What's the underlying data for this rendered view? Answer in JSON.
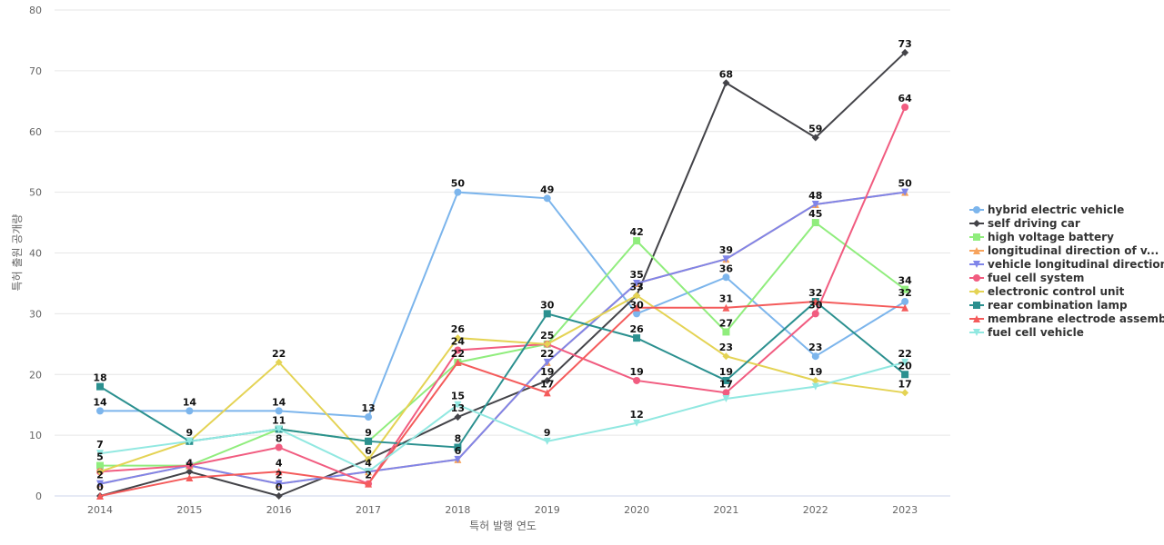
{
  "chart_data": {
    "type": "line",
    "title": "",
    "xlabel": "특허 발행 연도",
    "ylabel": "특허 출원 공개량",
    "x": [
      "2014",
      "2015",
      "2016",
      "2017",
      "2018",
      "2019",
      "2020",
      "2021",
      "2022",
      "2023"
    ],
    "ylim": [
      0,
      80
    ],
    "yticks": [
      0,
      10,
      20,
      30,
      40,
      50,
      60,
      70,
      80
    ],
    "grid": true,
    "legend_position": "right",
    "series": [
      {
        "name": "hybrid electric vehicle",
        "color": "#7cb5ec",
        "marker": "circle",
        "values": [
          14,
          14,
          14,
          13,
          50,
          49,
          30,
          36,
          23,
          32
        ]
      },
      {
        "name": "self driving car",
        "color": "#434348",
        "marker": "diamond",
        "values": [
          0,
          4,
          0,
          6,
          13,
          19,
          33,
          68,
          59,
          73
        ]
      },
      {
        "name": "high voltage battery",
        "color": "#90ed7d",
        "marker": "square",
        "values": [
          5,
          5,
          11,
          9,
          22,
          25,
          42,
          27,
          45,
          34
        ]
      },
      {
        "name": "longitudinal direction of v...",
        "color": "#f7a35c",
        "marker": "triangle",
        "values": [
          2,
          5,
          2,
          4,
          6,
          22,
          35,
          39,
          48,
          50
        ]
      },
      {
        "name": "vehicle longitudinal direction",
        "color": "#8085e9",
        "marker": "triangle-down",
        "values": [
          2,
          5,
          2,
          4,
          6,
          22,
          35,
          39,
          48,
          50
        ]
      },
      {
        "name": "fuel cell system",
        "color": "#f15c80",
        "marker": "circle",
        "values": [
          4,
          5,
          8,
          2,
          24,
          25,
          19,
          17,
          30,
          64
        ]
      },
      {
        "name": "electronic control unit",
        "color": "#e4d354",
        "marker": "diamond",
        "values": [
          4,
          9,
          22,
          6,
          26,
          25,
          33,
          23,
          19,
          17
        ]
      },
      {
        "name": "rear combination lamp",
        "color": "#2b908f",
        "marker": "square",
        "values": [
          18,
          9,
          11,
          9,
          8,
          30,
          26,
          19,
          32,
          20
        ]
      },
      {
        "name": "membrane electrode assembly",
        "color": "#f45b5b",
        "marker": "triangle",
        "values": [
          0,
          3,
          4,
          2,
          22,
          17,
          31,
          31,
          32,
          31
        ]
      },
      {
        "name": "fuel cell vehicle",
        "color": "#91e8e1",
        "marker": "triangle-down",
        "values": [
          7,
          9,
          11,
          4,
          15,
          9,
          12,
          16,
          18,
          22
        ]
      }
    ],
    "data_labels": [
      {
        "x": "2014",
        "y": 18,
        "text": "18"
      },
      {
        "x": "2014",
        "y": 14,
        "text": "14"
      },
      {
        "x": "2014",
        "y": 7,
        "text": "7"
      },
      {
        "x": "2014",
        "y": 5,
        "text": "5"
      },
      {
        "x": "2014",
        "y": 2,
        "text": "2"
      },
      {
        "x": "2014",
        "y": 0,
        "text": "0"
      },
      {
        "x": "2015",
        "y": 14,
        "text": "14"
      },
      {
        "x": "2015",
        "y": 9,
        "text": "9"
      },
      {
        "x": "2015",
        "y": 4,
        "text": "4"
      },
      {
        "x": "2016",
        "y": 22,
        "text": "22"
      },
      {
        "x": "2016",
        "y": 14,
        "text": "14"
      },
      {
        "x": "2016",
        "y": 11,
        "text": "11"
      },
      {
        "x": "2016",
        "y": 8,
        "text": "8"
      },
      {
        "x": "2016",
        "y": 4,
        "text": "4"
      },
      {
        "x": "2016",
        "y": 2,
        "text": "2"
      },
      {
        "x": "2016",
        "y": 0,
        "text": "0"
      },
      {
        "x": "2017",
        "y": 13,
        "text": "13"
      },
      {
        "x": "2017",
        "y": 9,
        "text": "9"
      },
      {
        "x": "2017",
        "y": 6,
        "text": "6"
      },
      {
        "x": "2017",
        "y": 4,
        "text": "4"
      },
      {
        "x": "2017",
        "y": 2,
        "text": "2"
      },
      {
        "x": "2018",
        "y": 50,
        "text": "50"
      },
      {
        "x": "2018",
        "y": 26,
        "text": "26"
      },
      {
        "x": "2018",
        "y": 24,
        "text": "24"
      },
      {
        "x": "2018",
        "y": 22,
        "text": "22"
      },
      {
        "x": "2018",
        "y": 15,
        "text": "15"
      },
      {
        "x": "2018",
        "y": 13,
        "text": "13"
      },
      {
        "x": "2018",
        "y": 8,
        "text": "8"
      },
      {
        "x": "2018",
        "y": 6,
        "text": "6"
      },
      {
        "x": "2019",
        "y": 49,
        "text": "49"
      },
      {
        "x": "2019",
        "y": 30,
        "text": "30"
      },
      {
        "x": "2019",
        "y": 25,
        "text": "25"
      },
      {
        "x": "2019",
        "y": 22,
        "text": "22"
      },
      {
        "x": "2019",
        "y": 19,
        "text": "19"
      },
      {
        "x": "2019",
        "y": 17,
        "text": "17"
      },
      {
        "x": "2019",
        "y": 9,
        "text": "9"
      },
      {
        "x": "2020",
        "y": 42,
        "text": "42"
      },
      {
        "x": "2020",
        "y": 35,
        "text": "35"
      },
      {
        "x": "2020",
        "y": 33,
        "text": "33"
      },
      {
        "x": "2020",
        "y": 30,
        "text": "30"
      },
      {
        "x": "2020",
        "y": 26,
        "text": "26"
      },
      {
        "x": "2020",
        "y": 19,
        "text": "19"
      },
      {
        "x": "2020",
        "y": 12,
        "text": "12"
      },
      {
        "x": "2021",
        "y": 68,
        "text": "68"
      },
      {
        "x": "2021",
        "y": 39,
        "text": "39"
      },
      {
        "x": "2021",
        "y": 36,
        "text": "36"
      },
      {
        "x": "2021",
        "y": 31,
        "text": "31"
      },
      {
        "x": "2021",
        "y": 27,
        "text": "27"
      },
      {
        "x": "2021",
        "y": 23,
        "text": "23"
      },
      {
        "x": "2021",
        "y": 19,
        "text": "19"
      },
      {
        "x": "2021",
        "y": 17,
        "text": "17"
      },
      {
        "x": "2022",
        "y": 59,
        "text": "59"
      },
      {
        "x": "2022",
        "y": 48,
        "text": "48"
      },
      {
        "x": "2022",
        "y": 45,
        "text": "45"
      },
      {
        "x": "2022",
        "y": 32,
        "text": "32"
      },
      {
        "x": "2022",
        "y": 30,
        "text": "30"
      },
      {
        "x": "2022",
        "y": 23,
        "text": "23"
      },
      {
        "x": "2022",
        "y": 19,
        "text": "19"
      },
      {
        "x": "2023",
        "y": 73,
        "text": "73"
      },
      {
        "x": "2023",
        "y": 64,
        "text": "64"
      },
      {
        "x": "2023",
        "y": 50,
        "text": "50"
      },
      {
        "x": "2023",
        "y": 34,
        "text": "34"
      },
      {
        "x": "2023",
        "y": 32,
        "text": "32"
      },
      {
        "x": "2023",
        "y": 22,
        "text": "22"
      },
      {
        "x": "2023",
        "y": 20,
        "text": "20"
      },
      {
        "x": "2023",
        "y": 17,
        "text": "17"
      }
    ]
  }
}
